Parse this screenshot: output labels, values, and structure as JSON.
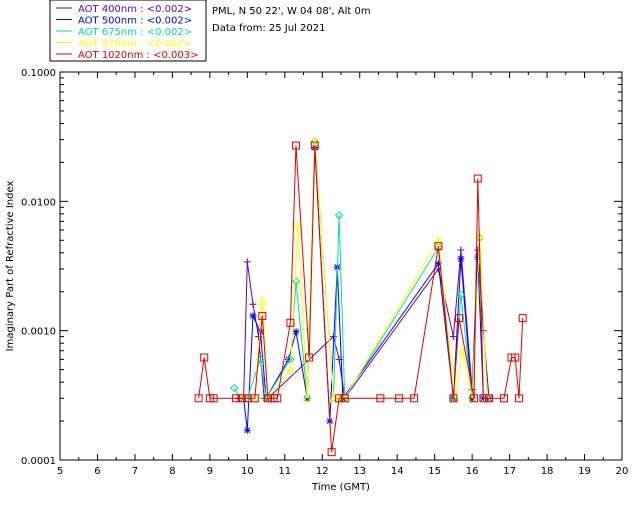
{
  "chart_data": {
    "type": "line",
    "title": "",
    "site": "PML, N 50 22', W 04 08', Alt 0m",
    "date_line": "Data from: 25 Jul 2021",
    "xlabel": "Time (GMT)",
    "ylabel": "Imaginary Part of Refractive Index",
    "xlim": [
      5,
      20
    ],
    "ylim": [
      0.0001,
      0.1
    ],
    "yscale": "log",
    "x_ticks": [
      "5",
      "6",
      "7",
      "8",
      "9",
      "10",
      "11",
      "12",
      "13",
      "14",
      "15",
      "16",
      "17",
      "18",
      "19",
      "20"
    ],
    "y_ticks": [
      "0.0001",
      "0.0010",
      "0.0100",
      "0.1000"
    ],
    "series": [
      {
        "name": "AOT  400nm : <0.002>",
        "color": "#6a00b0",
        "marker": "plus",
        "x": [
          9.75,
          9.9,
          10.0,
          10.15,
          10.3,
          10.45,
          10.55,
          12.3,
          12.45,
          12.6,
          15.1,
          15.5,
          15.7,
          16.0,
          16.15,
          16.3,
          16.45
        ],
        "y": [
          0.0003,
          0.0003,
          0.0034,
          0.0016,
          0.0009,
          0.0003,
          0.0003,
          0.0009,
          0.0006,
          0.0003,
          0.003,
          0.0009,
          0.0042,
          0.00035,
          0.0042,
          0.001,
          0.0003
        ]
      },
      {
        "name": "AOT  500nm : <0.002>",
        "color": "#0000ff",
        "marker": "star",
        "x": [
          9.9,
          10.0,
          10.15,
          10.35,
          10.5,
          11.1,
          11.3,
          11.6,
          11.8,
          12.2,
          12.4,
          12.55,
          15.1,
          15.5,
          15.7,
          16.0,
          16.15,
          16.3,
          16.45
        ],
        "y": [
          0.0003,
          0.00017,
          0.0013,
          0.00098,
          0.0003,
          0.0006,
          0.00098,
          0.0003,
          0.026,
          0.0002,
          0.0031,
          0.0003,
          0.0033,
          0.0003,
          0.0036,
          0.0003,
          0.0037,
          0.0003,
          0.0003
        ]
      },
      {
        "name": "AOT  675nm : <0.002>",
        "color": "#00e0a0",
        "marker": "diamond",
        "x": [
          9.65,
          9.8,
          10.0,
          10.35,
          10.5,
          11.15,
          11.3,
          11.6,
          11.8,
          12.3,
          12.45,
          12.6,
          15.1,
          15.5,
          15.7,
          16.0,
          16.2,
          16.4
        ],
        "y": [
          0.00036,
          0.0003,
          0.0003,
          0.0006,
          0.0003,
          0.0006,
          0.0024,
          0.0003,
          0.029,
          0.0003,
          0.0078,
          0.0003,
          0.0044,
          0.0003,
          0.0019,
          0.0003,
          0.0052,
          0.0003
        ]
      },
      {
        "name": "AOT  870nm : <0.002>",
        "color": "#ffff00",
        "marker": "triangle",
        "x": [
          9.85,
          10.2,
          10.4,
          10.55,
          11.15,
          11.35,
          11.6,
          11.8,
          12.3,
          12.45,
          12.6,
          15.1,
          15.55,
          15.75,
          16.0,
          16.2,
          16.4
        ],
        "y": [
          0.0003,
          0.0003,
          0.0017,
          0.0003,
          0.0005,
          0.0066,
          0.0003,
          0.029,
          0.0003,
          0.0003,
          0.0003,
          0.005,
          0.0003,
          0.0007,
          0.0003,
          0.0055,
          0.0003
        ]
      },
      {
        "name": "AOT 1020nm : <0.003>",
        "color": "#e00000",
        "marker": "square",
        "x": [
          8.7,
          8.85,
          9.0,
          9.1,
          9.7,
          9.85,
          10.0,
          10.2,
          10.4,
          10.55,
          10.7,
          10.8,
          11.15,
          11.3,
          11.65,
          11.8,
          12.25,
          12.45,
          12.6,
          13.55,
          14.05,
          14.45,
          15.1,
          15.5,
          15.65,
          16.05,
          16.15,
          16.3,
          16.45,
          16.85,
          17.05,
          17.15,
          17.25,
          17.35
        ],
        "y": [
          0.0003,
          0.00062,
          0.0003,
          0.0003,
          0.0003,
          0.0003,
          0.0003,
          0.0003,
          0.0013,
          0.0003,
          0.0003,
          0.0003,
          0.00115,
          0.027,
          0.00062,
          0.027,
          0.000115,
          0.0003,
          0.0003,
          0.0003,
          0.0003,
          0.0003,
          0.0045,
          0.0003,
          0.00125,
          0.0003,
          0.015,
          0.0003,
          0.0003,
          0.0003,
          0.00062,
          0.00062,
          0.0003,
          0.00125
        ]
      }
    ]
  }
}
